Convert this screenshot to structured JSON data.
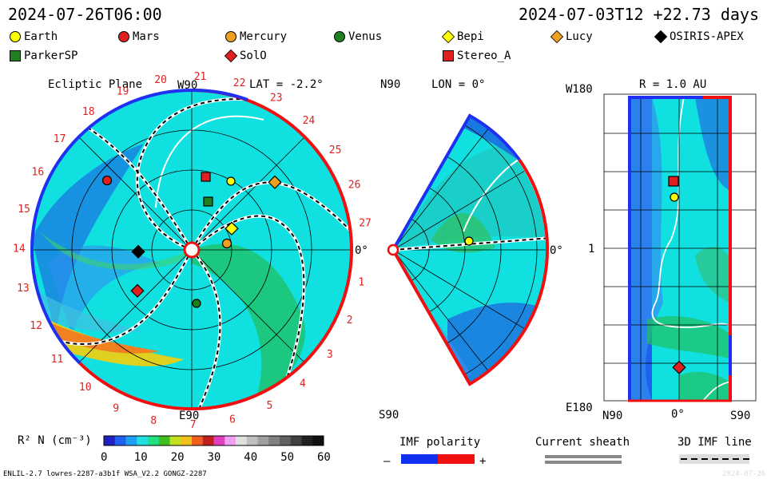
{
  "header": {
    "left_time": "2024-07-26T06:00",
    "right_time": "2024-07-03T12 +22.73 days"
  },
  "legend": [
    {
      "label": "Earth",
      "color": "#ffff00",
      "shape": "circle"
    },
    {
      "label": "Mars",
      "color": "#e02020",
      "shape": "circle"
    },
    {
      "label": "Mercury",
      "color": "#f0a020",
      "shape": "circle"
    },
    {
      "label": "Venus",
      "color": "#208020",
      "shape": "circle"
    },
    {
      "label": "Bepi",
      "color": "#ffff00",
      "shape": "diamond"
    },
    {
      "label": "Lucy",
      "color": "#f0a020",
      "shape": "diamond"
    },
    {
      "label": "OSIRIS-APEX",
      "color": "#000000",
      "shape": "diamond"
    },
    {
      "label": "ParkerSP",
      "color": "#208020",
      "shape": "square"
    },
    {
      "label": "SolO",
      "color": "#e02020",
      "shape": "diamond"
    },
    {
      "label": "Stereo_A",
      "color": "#e02020",
      "shape": "square"
    }
  ],
  "panel1": {
    "title": "Ecliptic Plane",
    "lat": "LAT = -2.2°",
    "top_label": "W90",
    "bottom_label": "E90",
    "right_label": "0°",
    "carrington": [
      "1",
      "2",
      "3",
      "4",
      "5",
      "6",
      "7",
      "8",
      "9",
      "10",
      "11",
      "12",
      "13",
      "14",
      "15",
      "16",
      "17",
      "18",
      "19",
      "20",
      "21",
      "22",
      "23",
      "24",
      "25",
      "26",
      "27"
    ]
  },
  "panel2": {
    "lon": "LON = 0°",
    "top_label": "N90",
    "bottom_label": "S90",
    "right_label": "0°"
  },
  "panel3": {
    "title": "R = 1.0 AU",
    "top_left": "W180",
    "mid_left": "1",
    "bottom_left": "E180",
    "x_labels": [
      "N90",
      "0°",
      "S90"
    ]
  },
  "colorbar": {
    "label": "R² N (cm⁻³)",
    "ticks": [
      "0",
      "10",
      "20",
      "30",
      "40",
      "50",
      "60"
    ]
  },
  "imf": {
    "label": "IMF polarity",
    "minus": "–",
    "plus": "+",
    "neg_color": "#1030f0",
    "pos_color": "#f01010"
  },
  "sheath": {
    "label": "Current sheath"
  },
  "imfline": {
    "label": "3D IMF line"
  },
  "footer": {
    "left": "ENLIL-2.7 lowres-2287-a3b1f WSA_V2.2 GONGZ-2287",
    "right": "2024-07-26"
  }
}
